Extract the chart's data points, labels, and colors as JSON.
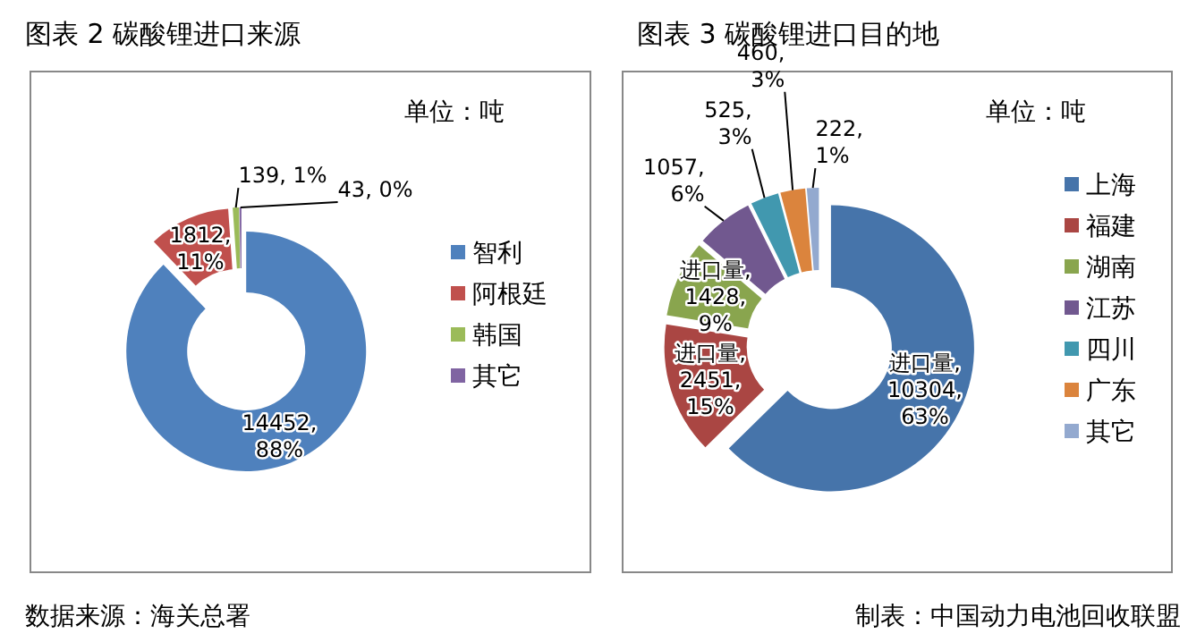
{
  "chart_data": [
    {
      "type": "donut",
      "title": "图表 2   碳酸锂进口来源",
      "categories": [
        "智利",
        "阿根廷",
        "韩国",
        "其它"
      ],
      "values": [
        14452,
        1812,
        139,
        43
      ],
      "colors": [
        "#4f81bd",
        "#c0504d",
        "#9bbb59",
        "#8064a2"
      ],
      "value_labels": [
        "14452,\n88%",
        "1812,\n11%",
        "139, 1%",
        "43, 0%"
      ],
      "legend": "right",
      "annotations": [
        "单位：吨",
        "数据来源：海关总署"
      ]
    },
    {
      "type": "donut",
      "title": "图表 3 碳酸锂进口目的地",
      "categories": [
        "上海",
        "福建",
        "湖南",
        "江苏",
        "四川",
        "广东",
        "其它"
      ],
      "values": [
        10304,
        2451,
        1428,
        1057,
        525,
        460,
        222
      ],
      "colors": [
        "#4674aa",
        "#aa4643",
        "#89a54e",
        "#71588f",
        "#4198af",
        "#db843d",
        "#93a9cf"
      ],
      "value_labels": [
        "进口量,\n10304,\n63%",
        "进口量,\n2451,\n15%",
        "进口量,\n1428,\n9%",
        "1057,\n6%",
        "525,\n3%",
        "460,\n3%",
        "222,\n1%"
      ],
      "legend": "right",
      "annotations": [
        "单位：吨",
        "制表：中国动力电池回收联盟"
      ]
    }
  ]
}
